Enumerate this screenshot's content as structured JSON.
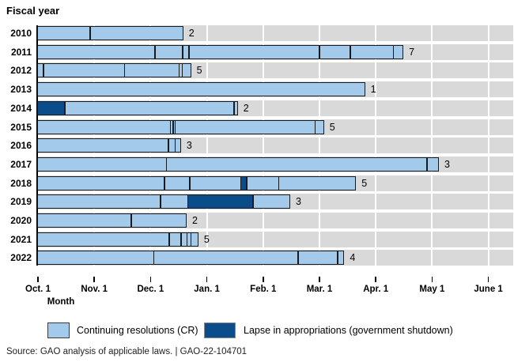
{
  "source": "Source: GAO analysis of applicable laws.  |  GAO-22-104701",
  "colors": {
    "cr": "#a3c9eb",
    "lapse": "#0b4d8b",
    "band": "#d9d9d9",
    "border": "#1a1a1a",
    "background": "#ffffff"
  },
  "chart_data": {
    "type": "bar",
    "subtype": "horizontal-timeline-gantt",
    "title": "Fiscal year",
    "xlabel": "Month",
    "ylabel": "Fiscal year",
    "x_unit": "months since Oct. 1",
    "xlim": [
      0,
      8.45
    ],
    "grid": "white vertical month gridlines on gray bands",
    "legend_position": "bottom",
    "x_ticks": [
      "Oct. 1",
      "Nov. 1",
      "Dec. 1",
      "Jan. 1",
      "Feb. 1",
      "Mar. 1",
      "Apr. 1",
      "May 1",
      "June 1"
    ],
    "legend": [
      {
        "label": "Continuing resolutions (CR)",
        "color": "#a3c9eb"
      },
      {
        "label": "Lapse in appropriations (government shutdown)",
        "color": "#0b4d8b"
      }
    ],
    "rows": [
      {
        "year": "2010",
        "cr_count": 2,
        "segments": [
          {
            "start": 0,
            "end": 0.93,
            "type": "cr"
          },
          {
            "start": 0.93,
            "end": 2.58,
            "type": "cr"
          }
        ]
      },
      {
        "year": "2011",
        "cr_count": 7,
        "segments": [
          {
            "start": 0,
            "end": 2.08,
            "type": "cr"
          },
          {
            "start": 2.08,
            "end": 2.57,
            "type": "cr"
          },
          {
            "start": 2.57,
            "end": 2.68,
            "type": "cr"
          },
          {
            "start": 2.68,
            "end": 5.0,
            "type": "cr"
          },
          {
            "start": 5.0,
            "end": 5.55,
            "type": "cr"
          },
          {
            "start": 5.55,
            "end": 6.31,
            "type": "cr"
          },
          {
            "start": 6.31,
            "end": 6.49,
            "type": "cr"
          }
        ]
      },
      {
        "year": "2012",
        "cr_count": 5,
        "segments": [
          {
            "start": 0,
            "end": 0.1,
            "type": "cr"
          },
          {
            "start": 0.1,
            "end": 1.54,
            "type": "cr"
          },
          {
            "start": 1.54,
            "end": 2.51,
            "type": "cr"
          },
          {
            "start": 2.51,
            "end": 2.56,
            "type": "cr"
          },
          {
            "start": 2.56,
            "end": 2.72,
            "type": "cr"
          }
        ]
      },
      {
        "year": "2013",
        "cr_count": 1,
        "segments": [
          {
            "start": 0,
            "end": 5.81,
            "type": "cr"
          }
        ]
      },
      {
        "year": "2014",
        "cr_count": 2,
        "segments": [
          {
            "start": 0,
            "end": 0.48,
            "type": "lapse"
          },
          {
            "start": 0.48,
            "end": 3.48,
            "type": "cr"
          },
          {
            "start": 3.48,
            "end": 3.55,
            "type": "cr"
          }
        ]
      },
      {
        "year": "2015",
        "cr_count": 5,
        "segments": [
          {
            "start": 0,
            "end": 2.35,
            "type": "cr"
          },
          {
            "start": 2.35,
            "end": 2.4,
            "type": "cr"
          },
          {
            "start": 2.4,
            "end": 2.44,
            "type": "cr"
          },
          {
            "start": 2.44,
            "end": 4.92,
            "type": "cr"
          },
          {
            "start": 4.92,
            "end": 5.08,
            "type": "cr"
          }
        ]
      },
      {
        "year": "2016",
        "cr_count": 3,
        "segments": [
          {
            "start": 0,
            "end": 2.32,
            "type": "cr"
          },
          {
            "start": 2.32,
            "end": 2.44,
            "type": "cr"
          },
          {
            "start": 2.44,
            "end": 2.54,
            "type": "cr"
          }
        ]
      },
      {
        "year": "2017",
        "cr_count": 3,
        "segments": [
          {
            "start": 0,
            "end": 2.28,
            "type": "cr"
          },
          {
            "start": 2.28,
            "end": 6.91,
            "type": "cr"
          },
          {
            "start": 6.91,
            "end": 7.12,
            "type": "cr"
          }
        ]
      },
      {
        "year": "2018",
        "cr_count": 5,
        "segments": [
          {
            "start": 0,
            "end": 2.25,
            "type": "cr"
          },
          {
            "start": 2.25,
            "end": 2.7,
            "type": "cr"
          },
          {
            "start": 2.7,
            "end": 3.61,
            "type": "cr"
          },
          {
            "start": 3.61,
            "end": 3.71,
            "type": "lapse"
          },
          {
            "start": 3.71,
            "end": 4.28,
            "type": "cr"
          },
          {
            "start": 4.28,
            "end": 5.65,
            "type": "cr"
          }
        ]
      },
      {
        "year": "2019",
        "cr_count": 3,
        "segments": [
          {
            "start": 0,
            "end": 2.18,
            "type": "cr"
          },
          {
            "start": 2.18,
            "end": 2.67,
            "type": "cr"
          },
          {
            "start": 2.67,
            "end": 3.82,
            "type": "lapse"
          },
          {
            "start": 3.82,
            "end": 4.48,
            "type": "cr"
          }
        ]
      },
      {
        "year": "2020",
        "cr_count": 2,
        "segments": [
          {
            "start": 0,
            "end": 1.66,
            "type": "cr"
          },
          {
            "start": 1.66,
            "end": 2.64,
            "type": "cr"
          }
        ]
      },
      {
        "year": "2021",
        "cr_count": 5,
        "segments": [
          {
            "start": 0,
            "end": 2.33,
            "type": "cr"
          },
          {
            "start": 2.33,
            "end": 2.54,
            "type": "cr"
          },
          {
            "start": 2.54,
            "end": 2.65,
            "type": "cr"
          },
          {
            "start": 2.65,
            "end": 2.72,
            "type": "cr"
          },
          {
            "start": 2.72,
            "end": 2.85,
            "type": "cr"
          }
        ]
      },
      {
        "year": "2022",
        "cr_count": 4,
        "segments": [
          {
            "start": 0,
            "end": 2.06,
            "type": "cr"
          },
          {
            "start": 2.06,
            "end": 4.62,
            "type": "cr"
          },
          {
            "start": 4.62,
            "end": 5.32,
            "type": "cr"
          },
          {
            "start": 5.32,
            "end": 5.44,
            "type": "cr"
          }
        ]
      }
    ]
  }
}
